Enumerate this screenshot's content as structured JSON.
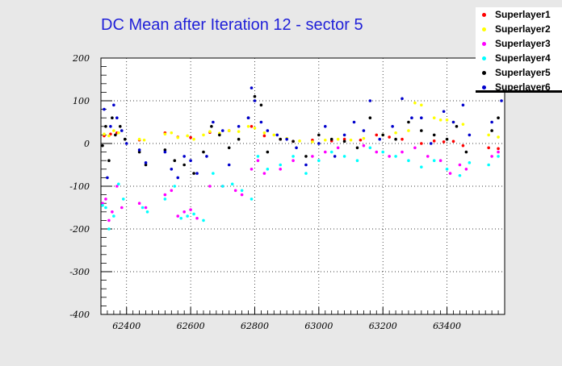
{
  "chart_data": {
    "type": "scatter",
    "title": "DC Mean after Iteration 12 - sector 5",
    "xlabel": "",
    "ylabel": "",
    "xlim": [
      62320,
      63580
    ],
    "ylim": [
      -400,
      200
    ],
    "xticks": [
      62400,
      62600,
      62800,
      63000,
      63200,
      63400
    ],
    "yticks": [
      -400,
      -300,
      -200,
      -100,
      0,
      100,
      200
    ],
    "grid": true,
    "legend_position": "top-right",
    "series": [
      {
        "name": "Superlayer1",
        "color": "#ff0000",
        "x": [
          62330,
          62350,
          62370,
          62440,
          62520,
          62560,
          62600,
          62660,
          62720,
          62790,
          62830,
          62880,
          62920,
          62980,
          63040,
          63080,
          63130,
          63180,
          63220,
          63260,
          63320,
          63360,
          63390,
          63420,
          63450,
          63530,
          63560
        ],
        "y": [
          18,
          22,
          25,
          8,
          25,
          15,
          14,
          26,
          30,
          40,
          18,
          10,
          5,
          8,
          6,
          10,
          8,
          20,
          15,
          10,
          0,
          6,
          4,
          5,
          -5,
          -10,
          -12
        ]
      },
      {
        "name": "Superlayer2",
        "color": "#ffff00",
        "x": [
          62330,
          62345,
          62360,
          62375,
          62440,
          62455,
          62520,
          62540,
          62560,
          62590,
          62610,
          62640,
          62660,
          62690,
          62720,
          62750,
          62780,
          62800,
          62830,
          62860,
          62900,
          62940,
          62980,
          63020,
          63060,
          63100,
          63140,
          63200,
          63240,
          63280,
          63300,
          63320,
          63360,
          63380,
          63400,
          63420,
          63450,
          63530,
          63560
        ],
        "y": [
          22,
          18,
          30,
          25,
          10,
          8,
          22,
          25,
          14,
          18,
          10,
          20,
          28,
          24,
          30,
          28,
          40,
          36,
          25,
          20,
          12,
          6,
          4,
          8,
          10,
          8,
          12,
          20,
          25,
          30,
          95,
          90,
          60,
          55,
          55,
          50,
          45,
          20,
          15
        ]
      },
      {
        "name": "Superlayer3",
        "color": "#ff00ff",
        "x": [
          62325,
          62335,
          62345,
          62355,
          62370,
          62385,
          62440,
          62460,
          62520,
          62540,
          62560,
          62580,
          62600,
          62620,
          62660,
          62700,
          62740,
          62760,
          62790,
          62810,
          62830,
          62880,
          62920,
          62980,
          63020,
          63060,
          63140,
          63180,
          63220,
          63260,
          63300,
          63340,
          63380,
          63410,
          63440,
          63460,
          63540,
          63560
        ],
        "y": [
          -140,
          -130,
          -180,
          -160,
          -100,
          -150,
          -140,
          -150,
          -120,
          -110,
          -170,
          -160,
          -155,
          -175,
          -100,
          -100,
          -110,
          -120,
          -60,
          -40,
          -70,
          -60,
          -40,
          -30,
          -20,
          -10,
          -5,
          -20,
          -30,
          -20,
          -10,
          -30,
          -40,
          -70,
          -50,
          -60,
          -30,
          -20
        ]
      },
      {
        "name": "Superlayer4",
        "color": "#00ffff",
        "x": [
          62325,
          62335,
          62345,
          62360,
          62375,
          62390,
          62450,
          62465,
          62520,
          62550,
          62570,
          62590,
          62610,
          62640,
          62670,
          62700,
          62730,
          62760,
          62790,
          62810,
          62840,
          62880,
          62920,
          62960,
          63000,
          63040,
          63080,
          63120,
          63160,
          63200,
          63240,
          63280,
          63320,
          63360,
          63400,
          63440,
          63470,
          63530,
          63560
        ],
        "y": [
          -145,
          -150,
          -200,
          -170,
          -95,
          -130,
          -150,
          -160,
          -130,
          -100,
          -175,
          -170,
          -165,
          -180,
          -70,
          -100,
          -95,
          -110,
          -130,
          -30,
          -60,
          -50,
          -30,
          -70,
          -40,
          -20,
          -30,
          -40,
          -10,
          -20,
          -30,
          -40,
          -55,
          -40,
          -60,
          -75,
          -45,
          -50,
          -30
        ]
      },
      {
        "name": "Superlayer5",
        "color": "#000000",
        "x": [
          62325,
          62335,
          62345,
          62355,
          62365,
          62380,
          62395,
          62440,
          62460,
          62520,
          62550,
          62580,
          62610,
          62640,
          62665,
          62690,
          62720,
          62750,
          62780,
          62800,
          62820,
          62840,
          62880,
          62920,
          62960,
          63000,
          63040,
          63080,
          63120,
          63160,
          63200,
          63240,
          63280,
          63320,
          63360,
          63400,
          63430,
          63460,
          63540,
          63560
        ],
        "y": [
          -5,
          40,
          -40,
          60,
          20,
          40,
          10,
          -20,
          -50,
          -15,
          -40,
          -50,
          -70,
          -20,
          40,
          20,
          -10,
          10,
          60,
          110,
          90,
          -20,
          10,
          5,
          -30,
          20,
          10,
          5,
          -10,
          60,
          20,
          10,
          50,
          30,
          20,
          10,
          40,
          -20,
          30,
          60
        ]
      },
      {
        "name": "Superlayer6",
        "color": "#0000cc",
        "x": [
          62330,
          62340,
          62350,
          62360,
          62370,
          62385,
          62400,
          62440,
          62460,
          62520,
          62540,
          62560,
          62580,
          62600,
          62620,
          62650,
          62670,
          62700,
          62720,
          62750,
          62780,
          62790,
          62800,
          62820,
          62840,
          62870,
          62900,
          62930,
          62960,
          63000,
          63020,
          63050,
          63080,
          63110,
          63140,
          63160,
          63190,
          63230,
          63260,
          63290,
          63320,
          63350,
          63390,
          63420,
          63450,
          63470,
          63540,
          63570
        ],
        "y": [
          80,
          -80,
          40,
          90,
          60,
          30,
          0,
          -15,
          -45,
          -20,
          -60,
          -80,
          -30,
          -40,
          -70,
          -30,
          50,
          30,
          -50,
          40,
          60,
          130,
          100,
          50,
          30,
          20,
          10,
          -10,
          -50,
          0,
          40,
          -30,
          20,
          50,
          30,
          100,
          10,
          40,
          105,
          60,
          60,
          0,
          75,
          50,
          90,
          20,
          50,
          100
        ]
      }
    ]
  }
}
